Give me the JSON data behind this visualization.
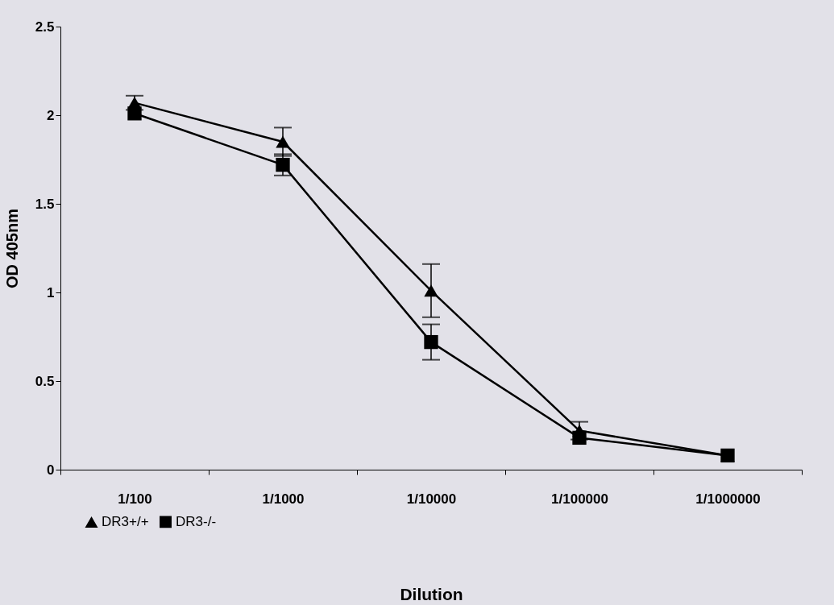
{
  "chart_data": {
    "type": "line",
    "xlabel": "Dilution",
    "ylabel": "OD 405nm",
    "categories": [
      "1/100",
      "1/1000",
      "1/10000",
      "1/100000",
      "1/1000000"
    ],
    "series": [
      {
        "name": "DR3+/+",
        "color": "#000000",
        "marker": "triangle",
        "values": [
          2.07,
          1.85,
          1.01,
          0.22,
          0.08
        ],
        "errors": [
          0.04,
          0.08,
          0.15,
          0.05,
          null
        ]
      },
      {
        "name": "DR3-/-",
        "color": "#000000",
        "marker": "square",
        "values": [
          2.01,
          1.72,
          0.72,
          0.18,
          0.08
        ],
        "errors": [
          null,
          0.06,
          0.1,
          null,
          null
        ]
      }
    ],
    "ylim": [
      0,
      2.5
    ],
    "yticks": [
      0,
      0.5,
      1,
      1.5,
      2,
      2.5
    ],
    "grid": false,
    "legend": "bottom left",
    "line_style": "solid"
  }
}
